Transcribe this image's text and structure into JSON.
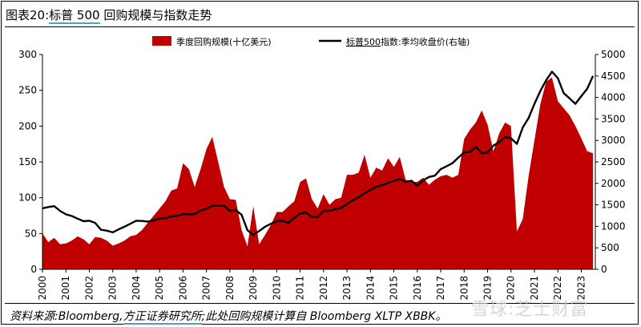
{
  "header": {
    "fig_label": "图表20:",
    "title_highlight": "标普 500",
    "title_rest": " 回购规模与指数走势"
  },
  "footer": {
    "source_prefix": "资料来源:Bloomberg,",
    "source_org": "方正证券研究所",
    "source_rest": ";此处回购规模计算自 Bloomberg XLTP XBBK。",
    "watermark": "雪球:芝士财富"
  },
  "colors": {
    "buyback_area": "#c00000",
    "index_line": "#000000",
    "underline_accent": "#4aa3c8"
  },
  "chart_data": {
    "type": "area",
    "legend": {
      "placement": "top",
      "items": [
        {
          "label": "季度回购规模(十亿美元)",
          "highlight": ""
        },
        {
          "label": "指数:季均收盘价(右轴)",
          "highlight": "标普500"
        }
      ]
    },
    "x_ticks": [
      "2000",
      "2001",
      "2002",
      "2003",
      "2004",
      "2005",
      "2006",
      "2007",
      "2008",
      "2009",
      "2010",
      "2011",
      "2012",
      "2013",
      "2014",
      "2015",
      "2016",
      "2017",
      "2018",
      "2019",
      "2020",
      "2021",
      "2022",
      "2023"
    ],
    "x_range": [
      2000,
      2023.6
    ],
    "left_axis": {
      "min": 0,
      "max": 300,
      "ticks": [
        "0",
        "50",
        "100",
        "150",
        "200",
        "250",
        "300"
      ]
    },
    "right_axis": {
      "min": 0,
      "max": 5000,
      "ticks": [
        "0",
        "500",
        "1000",
        "1500",
        "2000",
        "2500",
        "3000",
        "3500",
        "4000",
        "4500",
        "5000"
      ]
    },
    "grid": false,
    "series": [
      {
        "name": "季度回购规模(十亿美元)",
        "axis": "left",
        "kind": "area",
        "x": [
          2000.0,
          2000.25,
          2000.5,
          2000.75,
          2001.0,
          2001.25,
          2001.5,
          2001.75,
          2002.0,
          2002.25,
          2002.5,
          2002.75,
          2003.0,
          2003.25,
          2003.5,
          2003.75,
          2004.0,
          2004.25,
          2004.5,
          2004.75,
          2005.0,
          2005.25,
          2005.5,
          2005.75,
          2006.0,
          2006.25,
          2006.5,
          2006.75,
          2007.0,
          2007.25,
          2007.5,
          2007.75,
          2008.0,
          2008.25,
          2008.5,
          2008.75,
          2009.0,
          2009.25,
          2009.5,
          2009.75,
          2010.0,
          2010.25,
          2010.5,
          2010.75,
          2011.0,
          2011.25,
          2011.5,
          2011.75,
          2012.0,
          2012.25,
          2012.5,
          2012.75,
          2013.0,
          2013.25,
          2013.5,
          2013.75,
          2014.0,
          2014.25,
          2014.5,
          2014.75,
          2015.0,
          2015.25,
          2015.5,
          2015.75,
          2016.0,
          2016.25,
          2016.5,
          2016.75,
          2017.0,
          2017.25,
          2017.5,
          2017.75,
          2018.0,
          2018.25,
          2018.5,
          2018.75,
          2019.0,
          2019.25,
          2019.5,
          2019.75,
          2020.0,
          2020.25,
          2020.5,
          2020.75,
          2021.0,
          2021.25,
          2021.5,
          2021.75,
          2022.0,
          2022.25,
          2022.5,
          2022.75,
          2023.0,
          2023.25,
          2023.5
        ],
        "values": [
          50,
          38,
          44,
          35,
          36,
          40,
          46,
          42,
          35,
          45,
          44,
          40,
          33,
          36,
          40,
          46,
          48,
          55,
          65,
          75,
          85,
          95,
          110,
          113,
          148,
          140,
          115,
          140,
          168,
          185,
          150,
          115,
          98,
          97,
          55,
          32,
          88,
          35,
          48,
          62,
          80,
          80,
          88,
          95,
          122,
          127,
          98,
          85,
          105,
          90,
          98,
          100,
          132,
          132,
          135,
          160,
          128,
          142,
          138,
          155,
          143,
          157,
          125,
          122,
          122,
          128,
          118,
          125,
          130,
          132,
          128,
          132,
          182,
          195,
          205,
          222,
          202,
          165,
          190,
          205,
          200,
          53,
          70,
          130,
          180,
          230,
          262,
          268,
          235,
          225,
          215,
          200,
          183,
          165,
          162
        ]
      },
      {
        "name": "指数:季均收盘价(右轴)",
        "axis": "right",
        "kind": "line",
        "x": [
          2000.0,
          2000.25,
          2000.5,
          2000.75,
          2001.0,
          2001.25,
          2001.5,
          2001.75,
          2002.0,
          2002.25,
          2002.5,
          2002.75,
          2003.0,
          2003.25,
          2003.5,
          2003.75,
          2004.0,
          2004.25,
          2004.5,
          2004.75,
          2005.0,
          2005.25,
          2005.5,
          2005.75,
          2006.0,
          2006.25,
          2006.5,
          2006.75,
          2007.0,
          2007.25,
          2007.5,
          2007.75,
          2008.0,
          2008.25,
          2008.5,
          2008.75,
          2009.0,
          2009.25,
          2009.5,
          2009.75,
          2010.0,
          2010.25,
          2010.5,
          2010.75,
          2011.0,
          2011.25,
          2011.5,
          2011.75,
          2012.0,
          2012.25,
          2012.5,
          2012.75,
          2013.0,
          2013.25,
          2013.5,
          2013.75,
          2014.0,
          2014.25,
          2014.5,
          2014.75,
          2015.0,
          2015.25,
          2015.5,
          2015.75,
          2016.0,
          2016.25,
          2016.5,
          2016.75,
          2017.0,
          2017.25,
          2017.5,
          2017.75,
          2018.0,
          2018.25,
          2018.5,
          2018.75,
          2019.0,
          2019.25,
          2019.5,
          2019.75,
          2020.0,
          2020.25,
          2020.5,
          2020.75,
          2021.0,
          2021.25,
          2021.5,
          2021.75,
          2022.0,
          2022.25,
          2022.5,
          2022.75,
          2023.0,
          2023.25,
          2023.5
        ],
        "values": [
          1420,
          1450,
          1470,
          1360,
          1280,
          1240,
          1180,
          1120,
          1130,
          1080,
          920,
          900,
          860,
          930,
          990,
          1060,
          1130,
          1125,
          1110,
          1140,
          1185,
          1190,
          1230,
          1240,
          1290,
          1280,
          1290,
          1370,
          1410,
          1480,
          1480,
          1480,
          1360,
          1380,
          1270,
          910,
          800,
          890,
          990,
          1060,
          1120,
          1130,
          1080,
          1200,
          1300,
          1320,
          1220,
          1220,
          1360,
          1360,
          1400,
          1430,
          1520,
          1610,
          1680,
          1770,
          1850,
          1920,
          1960,
          2010,
          2060,
          2100,
          2040,
          2060,
          1950,
          2070,
          2150,
          2180,
          2330,
          2400,
          2470,
          2600,
          2720,
          2730,
          2850,
          2700,
          2720,
          2880,
          2960,
          3080,
          3050,
          2920,
          3300,
          3520,
          3850,
          4150,
          4400,
          4600,
          4450,
          4100,
          3980,
          3850,
          4030,
          4200,
          4500
        ]
      }
    ]
  }
}
